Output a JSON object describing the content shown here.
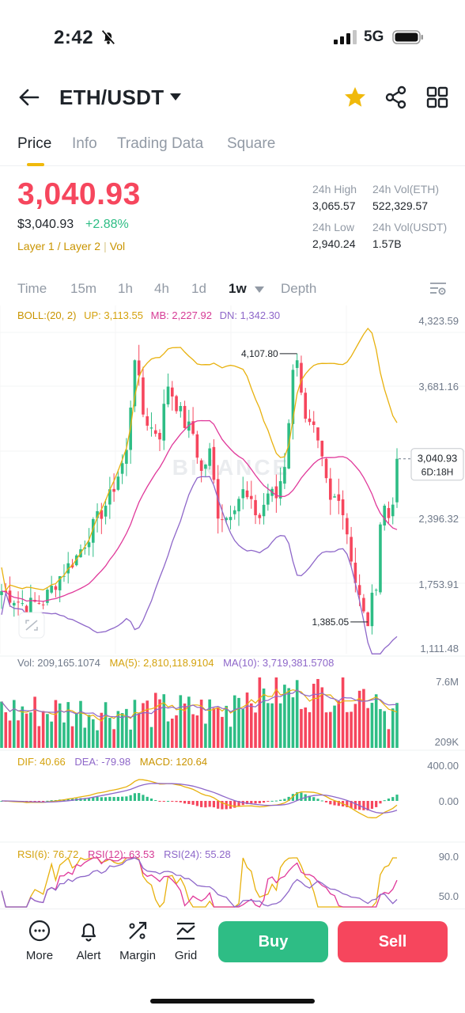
{
  "status_bar": {
    "time": "2:42",
    "network": "5G"
  },
  "header": {
    "pair": "ETH/USDT"
  },
  "tabs": [
    {
      "label": "Price",
      "active": true
    },
    {
      "label": "Info",
      "active": false
    },
    {
      "label": "Trading Data",
      "active": false
    },
    {
      "label": "Square",
      "active": false
    }
  ],
  "ticker": {
    "last_price": "3,040.93",
    "usd_price": "$3,040.93",
    "change": "+2.88%",
    "tag_1": "Layer 1 / Layer 2",
    "tag_2": "Vol",
    "high_label": "24h High",
    "high_value": "3,065.57",
    "vol_eth_label": "24h Vol(ETH)",
    "vol_eth_value": "522,329.57",
    "low_label": "24h Low",
    "low_value": "2,940.24",
    "vol_usdt_label": "24h Vol(USDT)",
    "vol_usdt_value": "1.57B"
  },
  "timeframes": [
    {
      "label": "Time",
      "active": false
    },
    {
      "label": "15m",
      "active": false
    },
    {
      "label": "1h",
      "active": false
    },
    {
      "label": "4h",
      "active": false
    },
    {
      "label": "1d",
      "active": false
    },
    {
      "label": "1w",
      "active": true
    },
    {
      "label": "Depth",
      "active": false
    }
  ],
  "indicators": {
    "boll_name": "BOLL:(20, 2)",
    "boll_up": "UP: 3,113.55",
    "boll_mb": "MB: 2,227.92",
    "boll_dn": "DN: 1,342.30",
    "vol": "Vol: 209,165.1074",
    "vol_ma5": "MA(5): 2,810,118.9104",
    "vol_ma10": "MA(10): 3,719,381.5708",
    "dif": "DIF: 40.66",
    "dea": "DEA: -79.98",
    "macd": "MACD: 120.64",
    "rsi6": "RSI(6): 76.72",
    "rsi12": "RSI(12): 63.53",
    "rsi24": "RSI(24): 55.28"
  },
  "chart_axes": {
    "price_ticks": [
      "4,323.59",
      "3,681.16",
      "2,396.32",
      "1,753.91",
      "1,111.48"
    ],
    "last_price_tag": "3,040.93",
    "countdown": "6D:18H",
    "high_marker": "4,107.80",
    "low_marker": "1,385.05",
    "watermark": "BINANCE",
    "vol_ticks": [
      "7.6M",
      "209K"
    ],
    "macd_ticks": [
      "400.00",
      "0.00"
    ],
    "rsi_ticks": [
      "90.0",
      "50.0"
    ]
  },
  "chart_data": {
    "type": "candlestick",
    "interval": "1w",
    "price_ylim": [
      1111.48,
      4323.59
    ],
    "last": 3040.93,
    "period_high": 4107.8,
    "period_low": 1385.05,
    "candles_count": 96
  },
  "bottom_bar": {
    "more": "More",
    "alert": "Alert",
    "margin": "Margin",
    "grid": "Grid",
    "buy": "Buy",
    "sell": "Sell"
  },
  "colors": {
    "up": "#2ebd85",
    "down": "#f6465d",
    "accent": "#f0b90b",
    "boll_up": "#e8b10e",
    "boll_mb": "#e0399a",
    "boll_dn": "#8e67c9"
  }
}
